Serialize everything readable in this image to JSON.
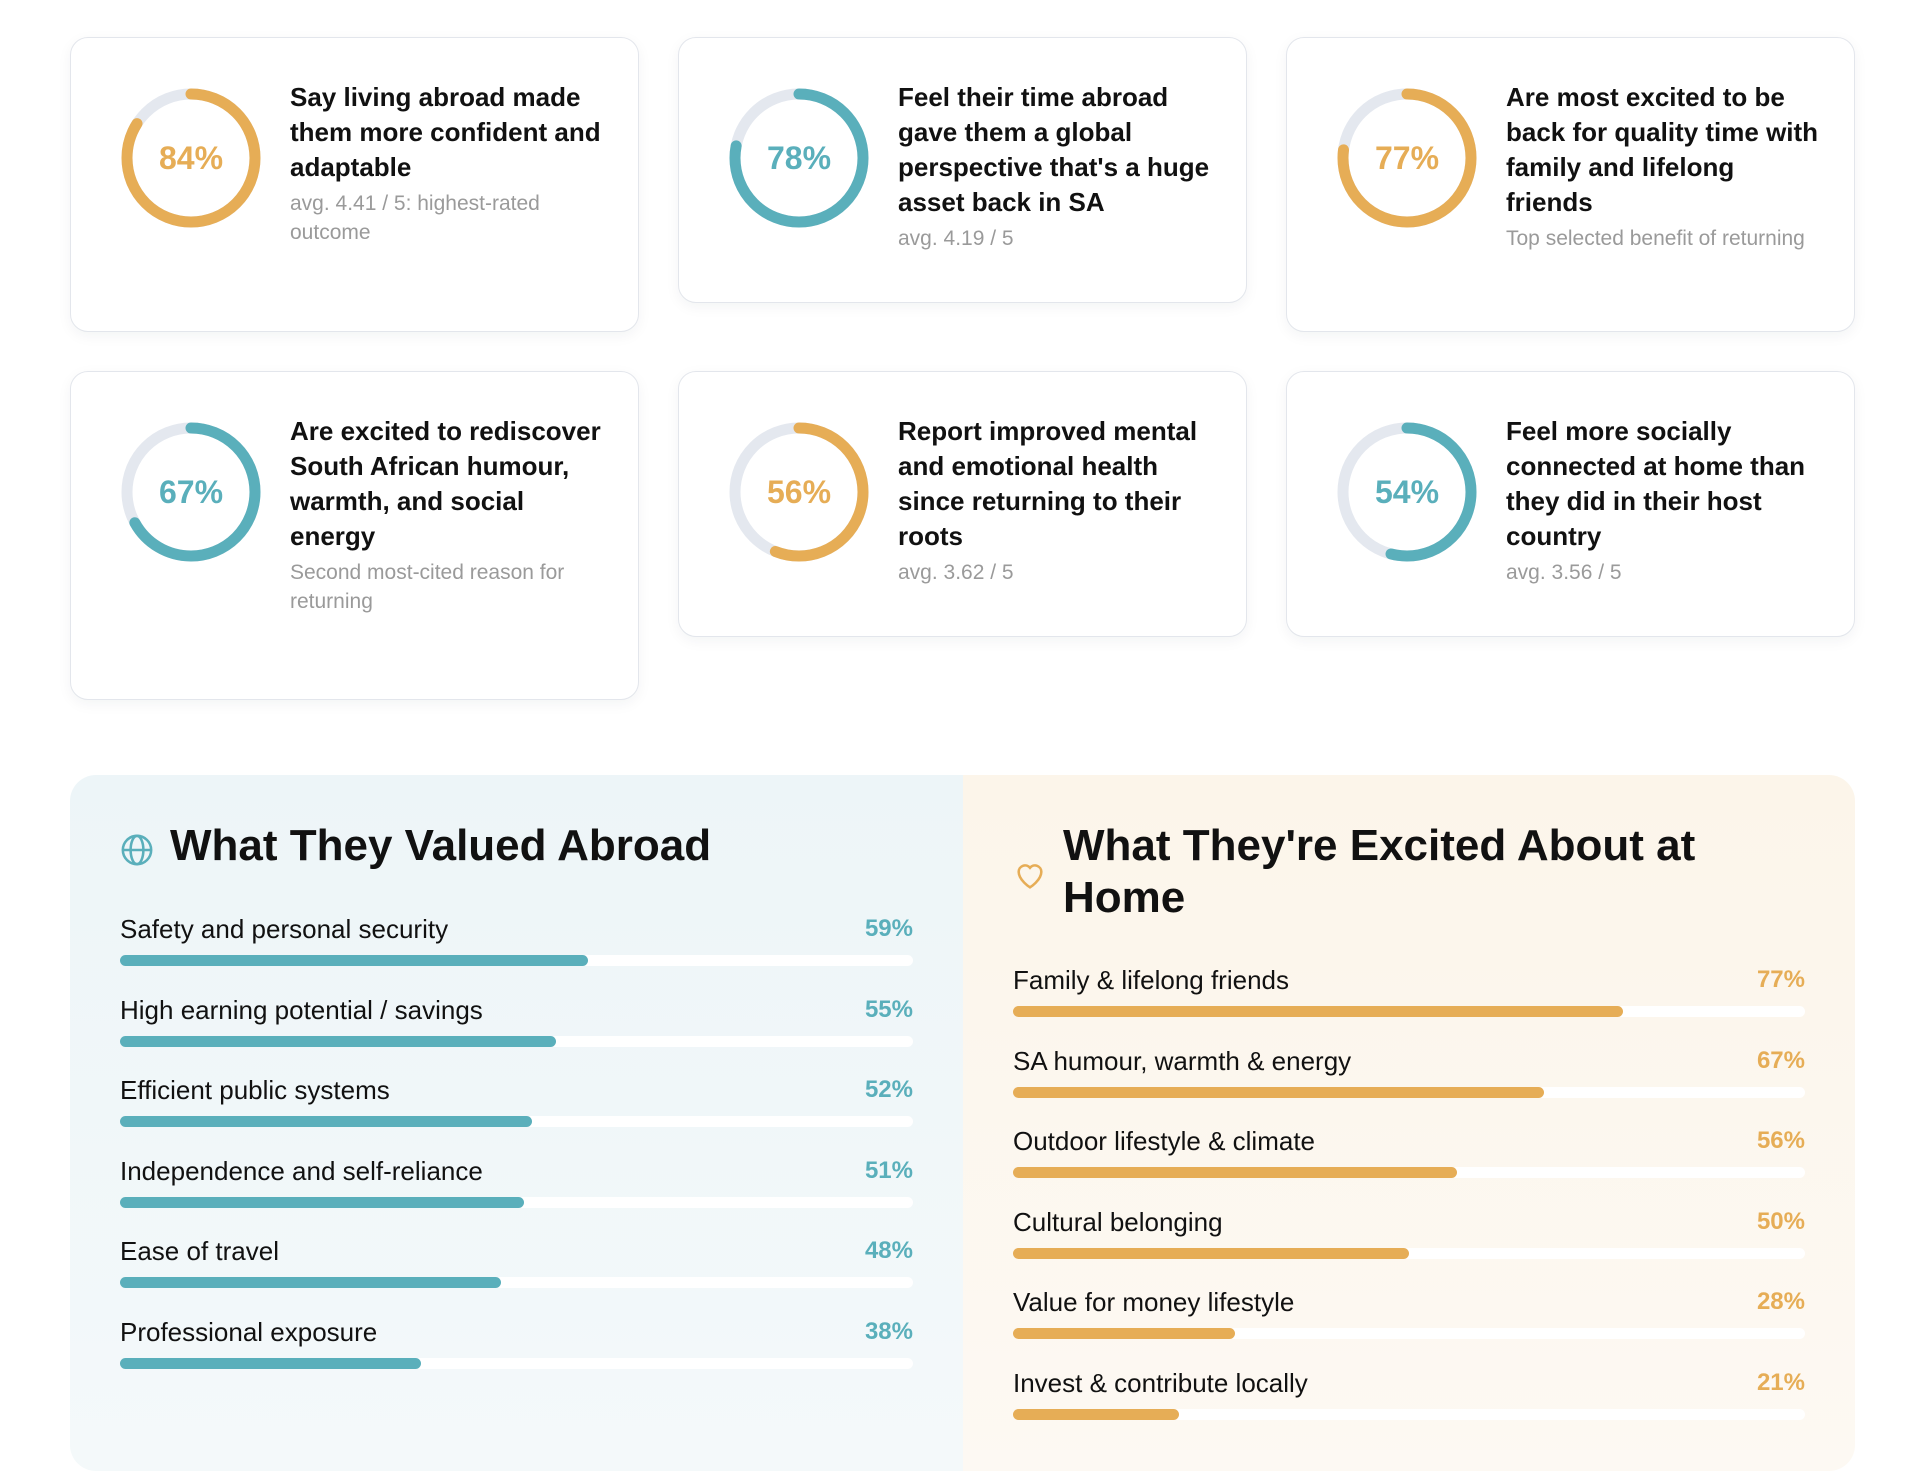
{
  "colors": {
    "teal": "#5aafbb",
    "gold": "#e6ad56",
    "track": "#e4e8ef"
  },
  "stats": [
    {
      "value": 84,
      "label": "84%",
      "color": "gold",
      "title": "Say living abroad made them more confident and adaptable",
      "subtitle": "avg. 4.41 / 5: highest-rated outcome"
    },
    {
      "value": 78,
      "label": "78%",
      "color": "teal",
      "title": "Feel their time abroad gave them a global perspective that's a huge asset back in SA",
      "subtitle": "avg. 4.19 / 5"
    },
    {
      "value": 77,
      "label": "77%",
      "color": "gold",
      "title": "Are most excited to be back for quality time with family and lifelong friends",
      "subtitle": "Top selected benefit of returning"
    },
    {
      "value": 67,
      "label": "67%",
      "color": "teal",
      "title": "Are excited to rediscover South African humour, warmth, and social energy",
      "subtitle": "Second most-cited reason for returning"
    },
    {
      "value": 56,
      "label": "56%",
      "color": "gold",
      "title": "Report improved mental and emotional health since returning to their roots",
      "subtitle": "avg. 3.62 / 5"
    },
    {
      "value": 54,
      "label": "54%",
      "color": "teal",
      "title": "Feel more socially connected at home than they did in their host country",
      "subtitle": "avg. 3.56 / 5"
    }
  ],
  "valued_abroad": {
    "icon": "globe-icon",
    "title": "What They Valued Abroad",
    "items": [
      {
        "label": "Safety and personal security",
        "value": 59,
        "pct": "59%"
      },
      {
        "label": "High earning potential / savings",
        "value": 55,
        "pct": "55%"
      },
      {
        "label": "Efficient public systems",
        "value": 52,
        "pct": "52%"
      },
      {
        "label": "Independence and self-reliance",
        "value": 51,
        "pct": "51%"
      },
      {
        "label": "Ease of travel",
        "value": 48,
        "pct": "48%"
      },
      {
        "label": "Professional exposure",
        "value": 38,
        "pct": "38%"
      }
    ]
  },
  "excited_home": {
    "icon": "heart-icon",
    "title": "What They're Excited About at Home",
    "items": [
      {
        "label": "Family & lifelong friends",
        "value": 77,
        "pct": "77%"
      },
      {
        "label": "SA humour, warmth & energy",
        "value": 67,
        "pct": "67%"
      },
      {
        "label": "Outdoor lifestyle & climate",
        "value": 56,
        "pct": "56%"
      },
      {
        "label": "Cultural belonging",
        "value": 50,
        "pct": "50%"
      },
      {
        "label": "Value for money lifestyle",
        "value": 28,
        "pct": "28%"
      },
      {
        "label": "Invest & contribute locally",
        "value": 21,
        "pct": "21%"
      }
    ]
  }
}
